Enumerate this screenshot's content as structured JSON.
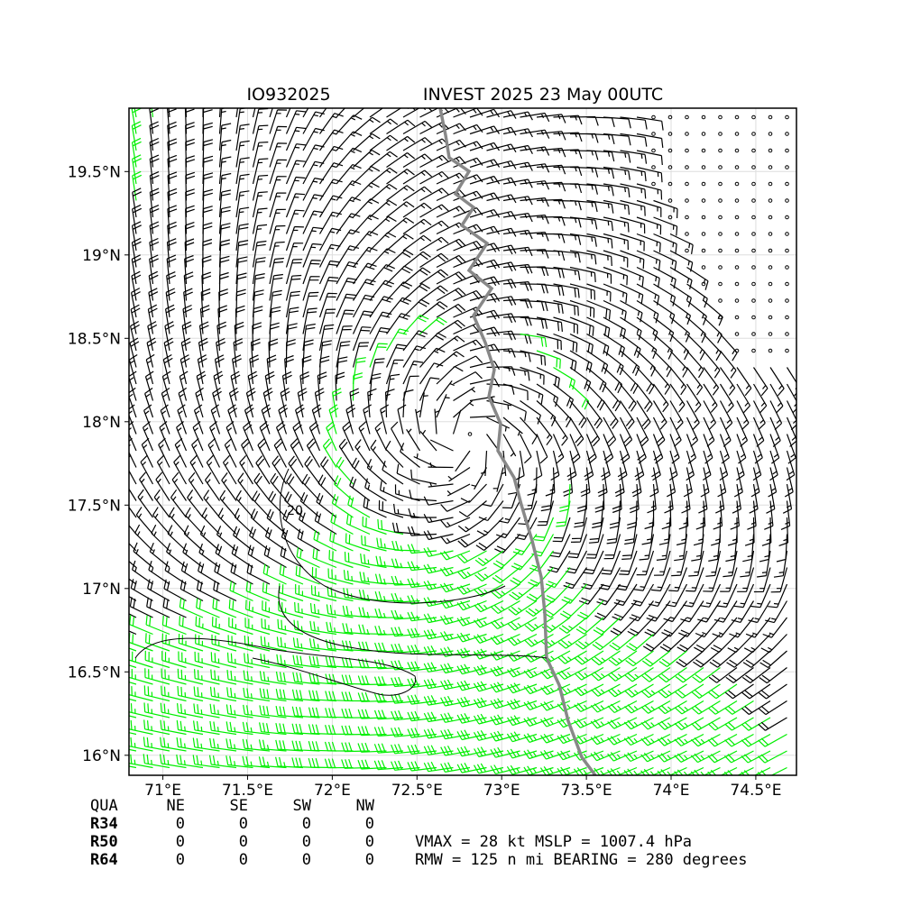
{
  "map": {
    "title_left": "IO932025",
    "title_right": "INVEST 2025 23 May 00UTC",
    "xlim": [
      70.8,
      74.74
    ],
    "ylim": [
      15.88,
      19.88
    ],
    "xticks": [
      {
        "value": 71,
        "label": "71°E"
      },
      {
        "value": 71.5,
        "label": "71.5°E"
      },
      {
        "value": 72,
        "label": "72°E"
      },
      {
        "value": 72.5,
        "label": "72.5°E"
      },
      {
        "value": 73,
        "label": "73°E"
      },
      {
        "value": 73.5,
        "label": "73.5°E"
      },
      {
        "value": 74,
        "label": "74°E"
      },
      {
        "value": 74.5,
        "label": "74.5°E"
      }
    ],
    "yticks": [
      {
        "value": 16,
        "label": "16°N"
      },
      {
        "value": 16.5,
        "label": "16.5°N"
      },
      {
        "value": 17,
        "label": "17°N"
      },
      {
        "value": 17.5,
        "label": "17.5°N"
      },
      {
        "value": 18,
        "label": "18°N"
      },
      {
        "value": 18.5,
        "label": "18.5°N"
      },
      {
        "value": 19,
        "label": "19°N"
      },
      {
        "value": 19.5,
        "label": "19.5°N"
      }
    ],
    "grid": true,
    "contour_label": "20"
  },
  "table": {
    "header": [
      "QUA",
      "NE",
      "SE",
      "SW",
      "NW"
    ],
    "rows": [
      [
        "R34",
        0,
        0,
        0,
        0
      ],
      [
        "R50",
        0,
        0,
        0,
        0
      ],
      [
        "R64",
        0,
        0,
        0,
        0
      ]
    ]
  },
  "stats": [
    "VMAX =  28 kt MSLP = 1007.4 hPa",
    "RMW = 125 n mi BEARING = 280 degrees"
  ]
}
